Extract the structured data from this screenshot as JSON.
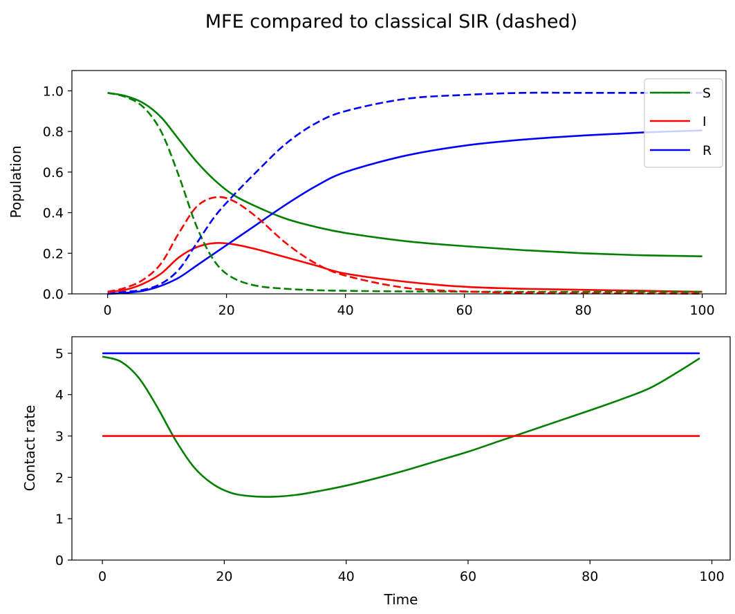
{
  "figure": {
    "title": "MFE compared to classical SIR (dashed)"
  },
  "colors": {
    "S": "#008000",
    "I": "#ff0000",
    "R": "#0000ff"
  },
  "chart_data": [
    {
      "type": "line",
      "title": "MFE compared to classical SIR (dashed)",
      "xlabel": "",
      "ylabel": "Population",
      "xlim": [
        -6,
        104
      ],
      "ylim": [
        0,
        1.1
      ],
      "xticks": [
        "0",
        "20",
        "40",
        "60",
        "80",
        "100"
      ],
      "yticks": [
        "0.0",
        "0.2",
        "0.4",
        "0.6",
        "0.8",
        "1.0"
      ],
      "legend": {
        "placement": "top-right",
        "entries": [
          "S",
          "I",
          "R"
        ]
      },
      "grid": false,
      "series": [
        {
          "name": "S",
          "style": "solid",
          "color": "#008000",
          "x": [
            0,
            3,
            6,
            9,
            12,
            15,
            18,
            21,
            25,
            30,
            35,
            40,
            50,
            60,
            70,
            80,
            90,
            100
          ],
          "y": [
            0.99,
            0.975,
            0.94,
            0.87,
            0.76,
            0.65,
            0.56,
            0.49,
            0.43,
            0.37,
            0.33,
            0.3,
            0.26,
            0.235,
            0.215,
            0.2,
            0.19,
            0.185
          ]
        },
        {
          "name": "I",
          "style": "solid",
          "color": "#ff0000",
          "x": [
            0,
            3,
            6,
            9,
            12,
            15,
            18,
            21,
            25,
            30,
            35,
            40,
            50,
            60,
            70,
            80,
            90,
            100
          ],
          "y": [
            0.01,
            0.02,
            0.05,
            0.1,
            0.18,
            0.23,
            0.25,
            0.245,
            0.22,
            0.18,
            0.14,
            0.1,
            0.06,
            0.035,
            0.025,
            0.02,
            0.015,
            0.01
          ]
        },
        {
          "name": "R",
          "style": "solid",
          "color": "#0000ff",
          "x": [
            0,
            3,
            6,
            9,
            12,
            15,
            18,
            21,
            25,
            30,
            35,
            40,
            50,
            60,
            70,
            80,
            90,
            100
          ],
          "y": [
            0.0,
            0.005,
            0.015,
            0.04,
            0.08,
            0.14,
            0.2,
            0.26,
            0.34,
            0.44,
            0.53,
            0.6,
            0.68,
            0.73,
            0.76,
            0.78,
            0.795,
            0.805
          ]
        },
        {
          "name": "S",
          "style": "dashed",
          "color": "#008000",
          "x": [
            0,
            3,
            6,
            9,
            12,
            15,
            18,
            21,
            25,
            30,
            35,
            40,
            50,
            60,
            70,
            80,
            90,
            100
          ],
          "y": [
            0.99,
            0.97,
            0.92,
            0.8,
            0.58,
            0.33,
            0.16,
            0.08,
            0.04,
            0.025,
            0.018,
            0.015,
            0.012,
            0.011,
            0.01,
            0.01,
            0.01,
            0.01
          ]
        },
        {
          "name": "I",
          "style": "dashed",
          "color": "#ff0000",
          "x": [
            0,
            3,
            6,
            9,
            12,
            15,
            18,
            21,
            25,
            30,
            35,
            40,
            50,
            60,
            70,
            80,
            90,
            100
          ],
          "y": [
            0.01,
            0.03,
            0.07,
            0.15,
            0.3,
            0.43,
            0.475,
            0.46,
            0.38,
            0.25,
            0.15,
            0.09,
            0.03,
            0.012,
            0.005,
            0.003,
            0.002,
            0.001
          ]
        },
        {
          "name": "R",
          "style": "dashed",
          "color": "#0000ff",
          "x": [
            0,
            3,
            6,
            9,
            12,
            15,
            18,
            21,
            25,
            30,
            35,
            40,
            50,
            60,
            70,
            80,
            90,
            100
          ],
          "y": [
            0.0,
            0.01,
            0.02,
            0.05,
            0.12,
            0.25,
            0.38,
            0.48,
            0.6,
            0.74,
            0.84,
            0.9,
            0.96,
            0.98,
            0.99,
            0.99,
            0.99,
            0.99
          ]
        }
      ]
    },
    {
      "type": "line",
      "title": "",
      "xlabel": "Time",
      "ylabel": "Contact rate",
      "xlim": [
        -5,
        103
      ],
      "ylim": [
        0,
        5.4
      ],
      "xticks": [
        "0",
        "20",
        "40",
        "60",
        "80",
        "100"
      ],
      "yticks": [
        "0",
        "1",
        "2",
        "3",
        "4",
        "5"
      ],
      "grid": false,
      "series": [
        {
          "style": "solid",
          "color": "#008000",
          "x": [
            0,
            3,
            6,
            9,
            12,
            15,
            18,
            21,
            24,
            28,
            32,
            36,
            40,
            45,
            50,
            55,
            60,
            65,
            70,
            75,
            80,
            85,
            90,
            95,
            98
          ],
          "y": [
            4.92,
            4.8,
            4.4,
            3.7,
            2.9,
            2.25,
            1.85,
            1.63,
            1.55,
            1.53,
            1.58,
            1.68,
            1.8,
            1.98,
            2.18,
            2.4,
            2.62,
            2.87,
            3.12,
            3.37,
            3.62,
            3.88,
            4.17,
            4.6,
            4.88
          ]
        },
        {
          "style": "solid",
          "color": "#ff0000",
          "x": [
            0,
            98
          ],
          "y": [
            3,
            3
          ]
        },
        {
          "style": "solid",
          "color": "#0000ff",
          "x": [
            0,
            98
          ],
          "y": [
            5,
            5
          ]
        }
      ]
    }
  ]
}
